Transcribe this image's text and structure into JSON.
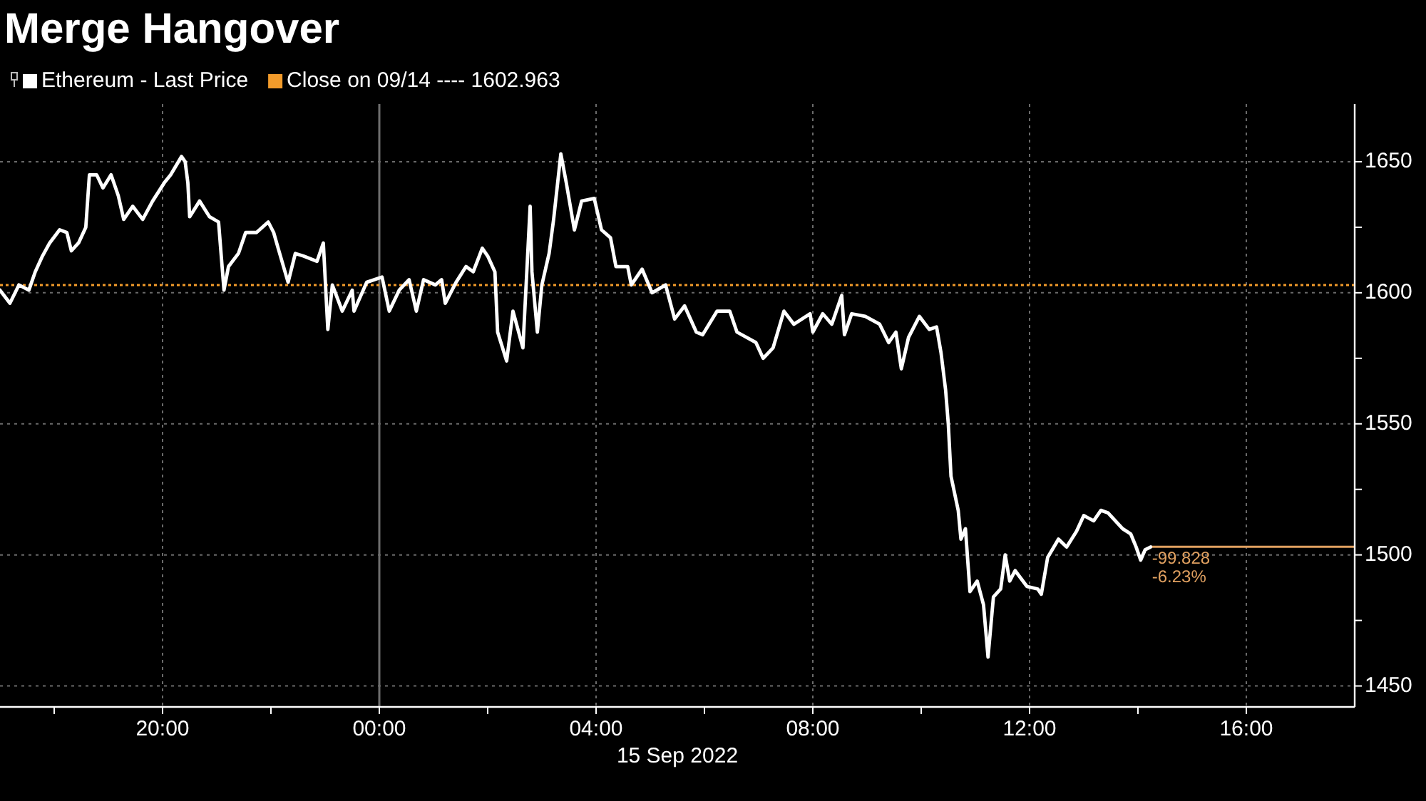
{
  "chart_data": {
    "type": "line",
    "title": "Merge Hangover",
    "xlabel": "15 Sep 2022",
    "x": [
      "2022-09-14T17:00",
      "2022-09-14T17:11",
      "2022-09-14T17:21",
      "2022-09-14T17:32",
      "2022-09-14T17:39",
      "2022-09-14T17:47",
      "2022-09-14T17:55",
      "2022-09-14T18:06",
      "2022-09-14T18:14",
      "2022-09-14T18:19",
      "2022-09-14T18:27",
      "2022-09-14T18:35",
      "2022-09-14T18:39",
      "2022-09-14T18:47",
      "2022-09-14T18:54",
      "2022-09-14T19:03",
      "2022-09-14T19:11",
      "2022-09-14T19:17",
      "2022-09-14T19:27",
      "2022-09-14T19:38",
      "2022-09-14T19:49",
      "2022-09-14T20:02",
      "2022-09-14T20:09",
      "2022-09-14T20:21",
      "2022-09-14T20:25",
      "2022-09-14T20:28",
      "2022-09-14T20:30",
      "2022-09-14T20:41",
      "2022-09-14T20:52",
      "2022-09-14T21:02",
      "2022-09-14T21:08",
      "2022-09-14T21:13",
      "2022-09-14T21:24",
      "2022-09-14T21:32",
      "2022-09-14T21:44",
      "2022-09-14T21:57",
      "2022-09-14T22:03",
      "2022-09-14T22:08",
      "2022-09-14T22:19",
      "2022-09-14T22:27",
      "2022-09-14T22:36",
      "2022-09-14T22:51",
      "2022-09-14T22:58",
      "2022-09-14T23:03",
      "2022-09-14T23:08",
      "2022-09-14T23:19",
      "2022-09-14T23:30",
      "2022-09-14T23:32",
      "2022-09-14T23:46",
      "2022-09-15T00:03",
      "2022-09-15T00:11",
      "2022-09-15T00:22",
      "2022-09-15T00:33",
      "2022-09-15T00:41",
      "2022-09-15T00:49",
      "2022-09-15T01:02",
      "2022-09-15T01:09",
      "2022-09-15T01:13",
      "2022-09-15T01:25",
      "2022-09-15T01:36",
      "2022-09-15T01:44",
      "2022-09-15T01:54",
      "2022-09-15T02:00",
      "2022-09-15T02:08",
      "2022-09-15T02:11",
      "2022-09-15T02:21",
      "2022-09-15T02:28",
      "2022-09-15T02:39",
      "2022-09-15T02:47",
      "2022-09-15T02:49",
      "2022-09-15T02:55",
      "2022-09-15T03:00",
      "2022-09-15T03:08",
      "2022-09-15T03:13",
      "2022-09-15T03:21",
      "2022-09-15T03:27",
      "2022-09-15T03:36",
      "2022-09-15T03:44",
      "2022-09-15T03:58",
      "2022-09-15T04:06",
      "2022-09-15T04:16",
      "2022-09-15T04:22",
      "2022-09-15T04:35",
      "2022-09-15T04:39",
      "2022-09-15T04:51",
      "2022-09-15T05:02",
      "2022-09-15T05:17",
      "2022-09-15T05:27",
      "2022-09-15T05:38",
      "2022-09-15T05:51",
      "2022-09-15T05:58",
      "2022-09-15T06:14",
      "2022-09-15T06:28",
      "2022-09-15T06:36",
      "2022-09-15T06:57",
      "2022-09-15T07:05",
      "2022-09-15T07:16",
      "2022-09-15T07:28",
      "2022-09-15T07:39",
      "2022-09-15T07:57",
      "2022-09-15T08:00",
      "2022-09-15T08:11",
      "2022-09-15T08:21",
      "2022-09-15T08:32",
      "2022-09-15T08:35",
      "2022-09-15T08:43",
      "2022-09-15T08:58",
      "2022-09-15T09:14",
      "2022-09-15T09:24",
      "2022-09-15T09:32",
      "2022-09-15T09:38",
      "2022-09-15T09:46",
      "2022-09-15T09:58",
      "2022-09-15T10:09",
      "2022-09-15T10:17",
      "2022-09-15T10:22",
      "2022-09-15T10:27",
      "2022-09-15T10:30",
      "2022-09-15T10:33",
      "2022-09-15T10:41",
      "2022-09-15T10:44",
      "2022-09-15T10:49",
      "2022-09-15T10:54",
      "2022-09-15T11:02",
      "2022-09-15T11:09",
      "2022-09-15T11:14",
      "2022-09-15T11:20",
      "2022-09-15T11:28",
      "2022-09-15T11:33",
      "2022-09-15T11:38",
      "2022-09-15T11:44",
      "2022-09-15T11:57",
      "2022-09-15T12:09",
      "2022-09-15T12:13",
      "2022-09-15T12:20",
      "2022-09-15T12:32",
      "2022-09-15T12:41",
      "2022-09-15T12:52",
      "2022-09-15T13:00",
      "2022-09-15T13:11",
      "2022-09-15T13:19",
      "2022-09-15T13:27",
      "2022-09-15T13:35",
      "2022-09-15T13:43",
      "2022-09-15T13:52",
      "2022-09-15T13:58",
      "2022-09-15T14:03",
      "2022-09-15T14:08",
      "2022-09-15T14:14"
    ],
    "series": [
      {
        "name": "Ethereum - Last Price",
        "color": "#ffffff",
        "values": [
          1601,
          1596,
          1603,
          1601,
          1608,
          1614,
          1619,
          1624,
          1623,
          1616,
          1619,
          1625,
          1645,
          1645,
          1640,
          1645,
          1637,
          1628,
          1633,
          1628,
          1635,
          1642,
          1645,
          1652,
          1650,
          1642,
          1629,
          1635,
          1629,
          1627,
          1601,
          1610,
          1615,
          1623,
          1623,
          1627,
          1623,
          1617,
          1604,
          1615,
          1614,
          1612,
          1619,
          1586,
          1603,
          1593,
          1601,
          1593,
          1604,
          1606,
          1593,
          1601,
          1605,
          1593,
          1605,
          1603,
          1605,
          1596,
          1604,
          1610,
          1608,
          1617,
          1614,
          1608,
          1585,
          1574,
          1593,
          1579,
          1633,
          1608,
          1585,
          1603,
          1615,
          1628,
          1653,
          1642,
          1624,
          1635,
          1636,
          1624,
          1621,
          1610,
          1610,
          1603,
          1609,
          1600,
          1603,
          1590,
          1595,
          1585,
          1584,
          1593,
          1593,
          1585,
          1581,
          1575,
          1579,
          1593,
          1588,
          1592,
          1585,
          1592,
          1588,
          1599,
          1584,
          1592,
          1591,
          1588,
          1581,
          1585,
          1571,
          1583,
          1591,
          1586,
          1587,
          1577,
          1563,
          1550,
          1530,
          1517,
          1506,
          1510,
          1486,
          1490,
          1481,
          1461,
          1484,
          1487,
          1500,
          1490,
          1494,
          1488,
          1487,
          1485,
          1499,
          1506,
          1503,
          1509,
          1515,
          1513,
          1517,
          1516,
          1513,
          1510,
          1508,
          1503,
          1498,
          1502,
          1503
        ]
      }
    ],
    "xlim": [
      "2022-09-14T17:00",
      "2022-09-15T18:00"
    ],
    "xticks": [
      {
        "value": "2022-09-14T18:00",
        "label": null
      },
      {
        "value": "2022-09-14T20:00",
        "label": "20:00"
      },
      {
        "value": "2022-09-14T22:00",
        "label": null
      },
      {
        "value": "2022-09-15T00:00",
        "label": "00:00"
      },
      {
        "value": "2022-09-15T02:00",
        "label": null
      },
      {
        "value": "2022-09-15T04:00",
        "label": "04:00"
      },
      {
        "value": "2022-09-15T06:00",
        "label": null
      },
      {
        "value": "2022-09-15T08:00",
        "label": "08:00"
      },
      {
        "value": "2022-09-15T10:00",
        "label": null
      },
      {
        "value": "2022-09-15T12:00",
        "label": "12:00"
      },
      {
        "value": "2022-09-15T14:00",
        "label": null
      },
      {
        "value": "2022-09-15T16:00",
        "label": "16:00"
      }
    ],
    "ylim": [
      1442,
      1672
    ],
    "yticks": [
      1450,
      {
        "value": 1475,
        "label": null
      },
      1500,
      {
        "value": 1525,
        "label": null
      },
      1550,
      {
        "value": 1575,
        "label": null
      },
      1600,
      {
        "value": 1625,
        "label": null
      },
      1650
    ],
    "grid": true,
    "legend": "top left",
    "ref_lines": [
      {
        "axis": "x",
        "value": "2022-09-15T00:00",
        "color": "#6e6e6e",
        "line_style": "solid"
      },
      {
        "axis": "y",
        "value": 1602.963,
        "label": "Close on 09/14 ---- 1602.963",
        "color": "#f29b2b",
        "line_style": "dotted"
      },
      {
        "axis": "y",
        "value": 1503.135,
        "color": "#e0a060",
        "line_style": "solid"
      }
    ],
    "annotations": [
      {
        "text": "-99.828",
        "x": "2022-09-15T14:14",
        "y": 1503.135
      },
      {
        "text": "-6.23%",
        "x": "2022-09-15T14:14",
        "y": 1503.135
      }
    ]
  }
}
